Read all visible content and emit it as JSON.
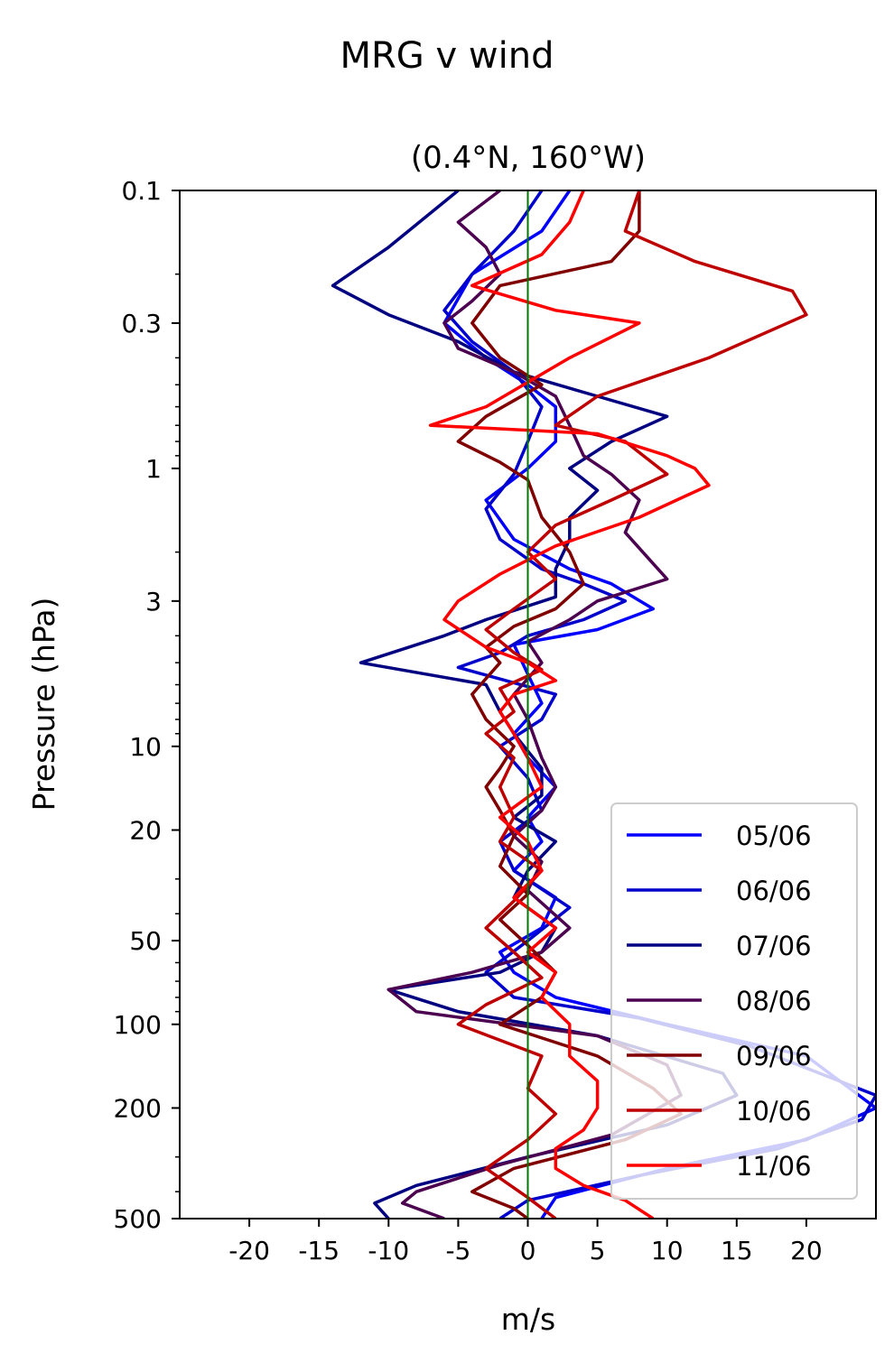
{
  "chart_data": {
    "type": "line",
    "suptitle": "MRG v wind",
    "title": "(0.4°N, 160°W)",
    "xlabel": "m/s",
    "ylabel": "Pressure (hPa)",
    "xlim": [
      -25,
      25
    ],
    "ylim": [
      500,
      0.1
    ],
    "yscale": "log",
    "xticks": [
      -20,
      -15,
      -10,
      -5,
      0,
      5,
      10,
      15,
      20
    ],
    "xtick_labels": [
      "-20",
      "-15",
      "-10",
      "-5",
      "0",
      "5",
      "10",
      "15",
      "20"
    ],
    "yticks": [
      0.1,
      0.3,
      1,
      3,
      10,
      20,
      50,
      100,
      200,
      500
    ],
    "ytick_labels": [
      "0.1",
      "0.3",
      "1",
      "3",
      "10",
      "20",
      "50",
      "100",
      "200",
      "500"
    ],
    "reference_line": {
      "x": 0,
      "color": "#007700"
    },
    "legend_position": "lower-right",
    "grid": false,
    "series": [
      {
        "name": "05/06",
        "color": "#0000ff",
        "points": [
          [
            3,
            0.1
          ],
          [
            1,
            0.14
          ],
          [
            -4,
            0.2
          ],
          [
            -6,
            0.3
          ],
          [
            -3,
            0.4
          ],
          [
            0,
            0.5
          ],
          [
            2,
            0.6
          ],
          [
            2,
            0.8
          ],
          [
            0,
            1.0
          ],
          [
            -3,
            1.3
          ],
          [
            -1,
            1.8
          ],
          [
            3,
            2.3
          ],
          [
            6,
            2.6
          ],
          [
            9,
            3.2
          ],
          [
            5,
            3.8
          ],
          [
            -1,
            4.3
          ],
          [
            0,
            5.5
          ],
          [
            1,
            7
          ],
          [
            -1,
            9
          ],
          [
            0,
            11
          ],
          [
            2,
            14
          ],
          [
            0,
            18
          ],
          [
            1,
            22
          ],
          [
            -1,
            28
          ],
          [
            2,
            35
          ],
          [
            1,
            45
          ],
          [
            -2,
            55
          ],
          [
            -1,
            65
          ],
          [
            2,
            80
          ],
          [
            10,
            100
          ],
          [
            20,
            130
          ],
          [
            25,
            200
          ],
          [
            20,
            260
          ],
          [
            10,
            330
          ],
          [
            2,
            420
          ],
          [
            1,
            500
          ]
        ]
      },
      {
        "name": "06/06",
        "color": "#0000cc",
        "points": [
          [
            1,
            0.1
          ],
          [
            -1,
            0.14
          ],
          [
            -4,
            0.2
          ],
          [
            -6,
            0.27
          ],
          [
            -4,
            0.35
          ],
          [
            -1,
            0.45
          ],
          [
            1,
            0.6
          ],
          [
            0,
            0.8
          ],
          [
            -1,
            1.05
          ],
          [
            -3,
            1.4
          ],
          [
            -2,
            1.8
          ],
          [
            1,
            2.3
          ],
          [
            4,
            2.6
          ],
          [
            7,
            3.0
          ],
          [
            4,
            3.5
          ],
          [
            0,
            4.0
          ],
          [
            -2,
            4.6
          ],
          [
            -5,
            5.2
          ],
          [
            2,
            6.5
          ],
          [
            1,
            8
          ],
          [
            -2,
            10
          ],
          [
            0,
            13
          ],
          [
            1,
            17
          ],
          [
            -2,
            22
          ],
          [
            -1,
            28
          ],
          [
            3,
            38
          ],
          [
            0,
            50
          ],
          [
            -3,
            65
          ],
          [
            -1,
            80
          ],
          [
            8,
            95
          ],
          [
            16,
            120
          ],
          [
            25,
            180
          ],
          [
            24,
            220
          ],
          [
            18,
            280
          ],
          [
            8,
            350
          ],
          [
            0,
            430
          ],
          [
            -2,
            500
          ]
        ]
      },
      {
        "name": "07/06",
        "color": "#000080",
        "points": [
          [
            -5,
            0.1
          ],
          [
            -10,
            0.16
          ],
          [
            -14,
            0.22
          ],
          [
            -10,
            0.28
          ],
          [
            -5,
            0.35
          ],
          [
            -1,
            0.45
          ],
          [
            5,
            0.55
          ],
          [
            10,
            0.65
          ],
          [
            6,
            0.8
          ],
          [
            3,
            1.0
          ],
          [
            5,
            1.2
          ],
          [
            3,
            1.5
          ],
          [
            3,
            1.8
          ],
          [
            2,
            2.3
          ],
          [
            2,
            2.9
          ],
          [
            -3,
            3.5
          ],
          [
            -6,
            4.0
          ],
          [
            -12,
            5.0
          ],
          [
            -3,
            6
          ],
          [
            -2,
            7.5
          ],
          [
            -1,
            9
          ],
          [
            1,
            12
          ],
          [
            1,
            15
          ],
          [
            -1,
            18
          ],
          [
            2,
            22
          ],
          [
            0,
            28
          ],
          [
            -1,
            35
          ],
          [
            2,
            45
          ],
          [
            1,
            55
          ],
          [
            -2,
            65
          ],
          [
            -10,
            75
          ],
          [
            -5,
            90
          ],
          [
            5,
            110
          ],
          [
            14,
            150
          ],
          [
            15,
            180
          ],
          [
            10,
            230
          ],
          [
            0,
            300
          ],
          [
            -8,
            380
          ],
          [
            -11,
            440
          ],
          [
            -10,
            500
          ]
        ]
      },
      {
        "name": "08/06",
        "color": "#4c0050",
        "points": [
          [
            -2,
            0.1
          ],
          [
            -5,
            0.13
          ],
          [
            -3,
            0.16
          ],
          [
            -2,
            0.2
          ],
          [
            -4,
            0.25
          ],
          [
            -6,
            0.3
          ],
          [
            -5,
            0.37
          ],
          [
            -1,
            0.45
          ],
          [
            2,
            0.55
          ],
          [
            3,
            0.7
          ],
          [
            4,
            0.9
          ],
          [
            6,
            1.05
          ],
          [
            8,
            1.3
          ],
          [
            7,
            1.7
          ],
          [
            9,
            2.2
          ],
          [
            10,
            2.5
          ],
          [
            5,
            3.0
          ],
          [
            3,
            3.5
          ],
          [
            0,
            4.2
          ],
          [
            1,
            5.0
          ],
          [
            -1,
            6.5
          ],
          [
            0,
            8
          ],
          [
            1,
            11
          ],
          [
            2,
            14
          ],
          [
            1,
            17
          ],
          [
            -1,
            21
          ],
          [
            1,
            26
          ],
          [
            0,
            33
          ],
          [
            3,
            45
          ],
          [
            1,
            55
          ],
          [
            -4,
            65
          ],
          [
            -10,
            75
          ],
          [
            -8,
            90
          ],
          [
            5,
            110
          ],
          [
            10,
            140
          ],
          [
            11,
            180
          ],
          [
            6,
            250
          ],
          [
            -2,
            320
          ],
          [
            -8,
            400
          ],
          [
            -9,
            440
          ],
          [
            -6,
            500
          ]
        ]
      },
      {
        "name": "09/06",
        "color": "#800000",
        "points": [
          [
            8,
            0.1
          ],
          [
            8,
            0.14
          ],
          [
            6,
            0.18
          ],
          [
            -2,
            0.22
          ],
          [
            -4,
            0.3
          ],
          [
            -2,
            0.4
          ],
          [
            1,
            0.5
          ],
          [
            -3,
            0.65
          ],
          [
            -5,
            0.8
          ],
          [
            -2,
            0.95
          ],
          [
            0,
            1.1
          ],
          [
            1,
            1.5
          ],
          [
            3,
            2.0
          ],
          [
            4,
            2.6
          ],
          [
            2,
            3.2
          ],
          [
            -1,
            3.7
          ],
          [
            -3,
            4.4
          ],
          [
            -2,
            5.0
          ],
          [
            -4,
            6.5
          ],
          [
            -3,
            8
          ],
          [
            -1,
            10
          ],
          [
            -2,
            12
          ],
          [
            -3,
            14
          ],
          [
            -2,
            17
          ],
          [
            -1,
            21
          ],
          [
            -2,
            27
          ],
          [
            0,
            34
          ],
          [
            -2,
            42
          ],
          [
            0,
            52
          ],
          [
            2,
            65
          ],
          [
            1,
            80
          ],
          [
            -2,
            100
          ],
          [
            5,
            130
          ],
          [
            9,
            170
          ],
          [
            11,
            210
          ],
          [
            7,
            260
          ],
          [
            -1,
            330
          ],
          [
            -4,
            400
          ],
          [
            -1,
            460
          ],
          [
            0,
            500
          ]
        ]
      },
      {
        "name": "10/06",
        "color": "#bf0000",
        "points": [
          [
            8,
            0.1
          ],
          [
            7,
            0.14
          ],
          [
            12,
            0.18
          ],
          [
            19,
            0.23
          ],
          [
            20,
            0.28
          ],
          [
            13,
            0.4
          ],
          [
            5,
            0.55
          ],
          [
            2,
            0.7
          ],
          [
            7,
            0.8
          ],
          [
            10,
            1.05
          ],
          [
            6,
            1.3
          ],
          [
            2,
            1.6
          ],
          [
            0,
            2.0
          ],
          [
            2,
            2.5
          ],
          [
            -1,
            3.2
          ],
          [
            -3,
            3.8
          ],
          [
            -1,
            4.6
          ],
          [
            1,
            5.3
          ],
          [
            -2,
            6.2
          ],
          [
            -1,
            7.5
          ],
          [
            -3,
            9
          ],
          [
            -1,
            11
          ],
          [
            -2,
            14
          ],
          [
            -1,
            18
          ],
          [
            -2,
            22
          ],
          [
            1,
            28
          ],
          [
            -1,
            36
          ],
          [
            -3,
            45
          ],
          [
            -1,
            55
          ],
          [
            1,
            68
          ],
          [
            -3,
            85
          ],
          [
            -5,
            100
          ],
          [
            1,
            130
          ],
          [
            0,
            170
          ],
          [
            2,
            210
          ],
          [
            0,
            260
          ],
          [
            -3,
            330
          ],
          [
            0,
            420
          ],
          [
            2,
            500
          ]
        ]
      },
      {
        "name": "11/06",
        "color": "#ff0000",
        "points": [
          [
            4,
            0.1
          ],
          [
            3,
            0.13
          ],
          [
            1,
            0.17
          ],
          [
            -4,
            0.22
          ],
          [
            2,
            0.27
          ],
          [
            8,
            0.3
          ],
          [
            3,
            0.4
          ],
          [
            -3,
            0.6
          ],
          [
            -7,
            0.7
          ],
          [
            5,
            0.75
          ],
          [
            10,
            0.9
          ],
          [
            12,
            1.0
          ],
          [
            13,
            1.15
          ],
          [
            8,
            1.5
          ],
          [
            2,
            1.9
          ],
          [
            -2,
            2.4
          ],
          [
            -5,
            3.0
          ],
          [
            -6,
            3.5
          ],
          [
            -3,
            4.4
          ],
          [
            0,
            5.0
          ],
          [
            2,
            5.8
          ],
          [
            -1,
            6.5
          ],
          [
            -2,
            7.5
          ],
          [
            -1,
            9
          ],
          [
            0,
            11
          ],
          [
            1,
            14
          ],
          [
            -2,
            18
          ],
          [
            0,
            22
          ],
          [
            1,
            28
          ],
          [
            -1,
            35
          ],
          [
            2,
            45
          ],
          [
            0,
            55
          ],
          [
            2,
            65
          ],
          [
            1,
            80
          ],
          [
            3,
            100
          ],
          [
            3,
            130
          ],
          [
            5,
            160
          ],
          [
            5,
            200
          ],
          [
            4,
            240
          ],
          [
            2,
            280
          ],
          [
            2,
            330
          ],
          [
            4,
            380
          ],
          [
            7,
            430
          ],
          [
            9,
            500
          ]
        ]
      }
    ]
  }
}
